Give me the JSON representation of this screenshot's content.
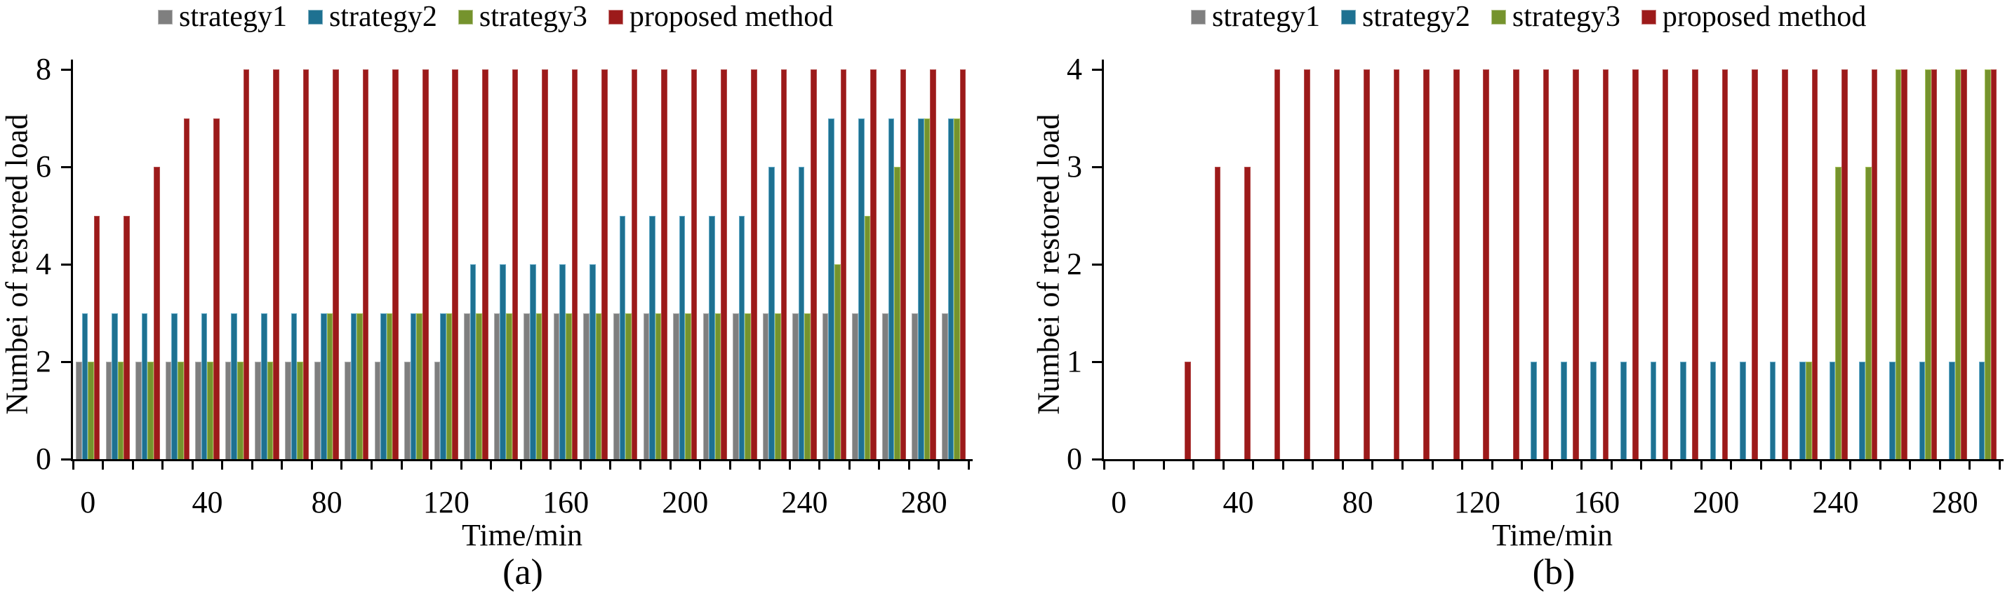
{
  "figure": {
    "background": "#ffffff",
    "axis_color": "#000000"
  },
  "chart_data": [
    {
      "type": "bar",
      "panel": "a",
      "caption": "(a)",
      "xlabel": "Time/min",
      "ylabel": "Numbei of restored load",
      "legend_position": "top",
      "grid": false,
      "ylim": [
        0,
        8
      ],
      "yticks": [
        0,
        2,
        4,
        6,
        8
      ],
      "xtick_labels": [
        0,
        40,
        80,
        120,
        160,
        200,
        240,
        280
      ],
      "x": [
        0,
        10,
        20,
        30,
        40,
        50,
        60,
        70,
        80,
        90,
        100,
        110,
        120,
        130,
        140,
        150,
        160,
        170,
        180,
        190,
        200,
        210,
        220,
        230,
        240,
        250,
        260,
        270,
        280,
        290
      ],
      "series": [
        {
          "name": "strategy1",
          "color": "#7F7F7F",
          "edge": "#ACACAC",
          "values": [
            2,
            2,
            2,
            2,
            2,
            2,
            2,
            2,
            2,
            2,
            2,
            2,
            2,
            3,
            3,
            3,
            3,
            3,
            3,
            3,
            3,
            3,
            3,
            3,
            3,
            3,
            3,
            3,
            3,
            3
          ]
        },
        {
          "name": "strategy2",
          "color": "#1E7191",
          "edge": "#63A9C7",
          "values": [
            3,
            3,
            3,
            3,
            3,
            3,
            3,
            3,
            3,
            3,
            3,
            3,
            3,
            4,
            4,
            4,
            4,
            4,
            5,
            5,
            5,
            5,
            5,
            6,
            6,
            7,
            7,
            7,
            7,
            7
          ]
        },
        {
          "name": "strategy3",
          "color": "#75932D",
          "edge": "#A5C159",
          "values": [
            2,
            2,
            2,
            2,
            2,
            2,
            2,
            2,
            3,
            3,
            3,
            3,
            3,
            3,
            3,
            3,
            3,
            3,
            3,
            3,
            3,
            3,
            3,
            3,
            3,
            4,
            5,
            6,
            7,
            7
          ]
        },
        {
          "name": "proposed method",
          "color": "#9C1A1A",
          "edge": "#B34B4B",
          "values": [
            5,
            5,
            6,
            7,
            7,
            8,
            8,
            8,
            8,
            8,
            8,
            8,
            8,
            8,
            8,
            8,
            8,
            8,
            8,
            8,
            8,
            8,
            8,
            8,
            8,
            8,
            8,
            8,
            8,
            8
          ]
        }
      ]
    },
    {
      "type": "bar",
      "panel": "b",
      "caption": "(b)",
      "xlabel": "Time/min",
      "ylabel": "Numbei of restored load",
      "legend_position": "top",
      "grid": false,
      "ylim": [
        0,
        4
      ],
      "yticks": [
        0,
        1,
        2,
        3,
        4
      ],
      "xtick_labels": [
        0,
        40,
        80,
        120,
        160,
        200,
        240,
        280
      ],
      "x": [
        0,
        10,
        20,
        30,
        40,
        50,
        60,
        70,
        80,
        90,
        100,
        110,
        120,
        130,
        140,
        150,
        160,
        170,
        180,
        190,
        200,
        210,
        220,
        230,
        240,
        250,
        260,
        270,
        280,
        290
      ],
      "series": [
        {
          "name": "strategy1",
          "color": "#7F7F7F",
          "edge": "#ACACAC",
          "values": [
            0,
            0,
            0,
            0,
            0,
            0,
            0,
            0,
            0,
            0,
            0,
            0,
            0,
            0,
            0,
            0,
            0,
            0,
            0,
            0,
            0,
            0,
            0,
            0,
            0,
            0,
            0,
            0,
            0,
            0
          ]
        },
        {
          "name": "strategy2",
          "color": "#1E7191",
          "edge": "#63A9C7",
          "values": [
            0,
            0,
            0,
            0,
            0,
            0,
            0,
            0,
            0,
            0,
            0,
            0,
            0,
            0,
            1,
            1,
            1,
            1,
            1,
            1,
            1,
            1,
            1,
            1,
            1,
            1,
            1,
            1,
            1,
            1
          ]
        },
        {
          "name": "strategy3",
          "color": "#75932D",
          "edge": "#A5C159",
          "values": [
            0,
            0,
            0,
            0,
            0,
            0,
            0,
            0,
            0,
            0,
            0,
            0,
            0,
            0,
            0,
            0,
            0,
            0,
            0,
            0,
            0,
            0,
            0,
            1,
            3,
            3,
            4,
            4,
            4,
            4
          ]
        },
        {
          "name": "proposed method",
          "color": "#9C1A1A",
          "edge": "#B34B4B",
          "values": [
            0,
            0,
            1,
            3,
            3,
            4,
            4,
            4,
            4,
            4,
            4,
            4,
            4,
            4,
            4,
            4,
            4,
            4,
            4,
            4,
            4,
            4,
            4,
            4,
            4,
            4,
            4,
            4,
            4,
            4
          ]
        }
      ]
    }
  ]
}
